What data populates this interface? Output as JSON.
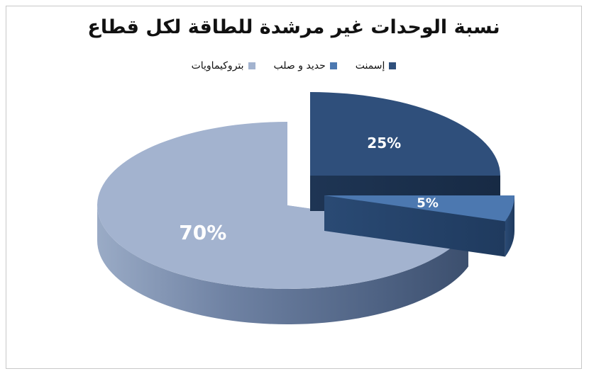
{
  "chart_data": {
    "type": "pie",
    "title": "نسبة الوحدات غير مرشدة للطاقة لكل قطاع",
    "legend_position": "top",
    "slices": [
      {
        "name": "إسمنت",
        "value": 25,
        "label": "25%",
        "color": "#2f4f7b"
      },
      {
        "name": "حديد و صلب",
        "value": 5,
        "label": "5%",
        "color": "#4c78b0"
      },
      {
        "name": "بتروكيماويات",
        "value": 70,
        "label": "70%",
        "color": "#a3b3cf"
      }
    ]
  }
}
